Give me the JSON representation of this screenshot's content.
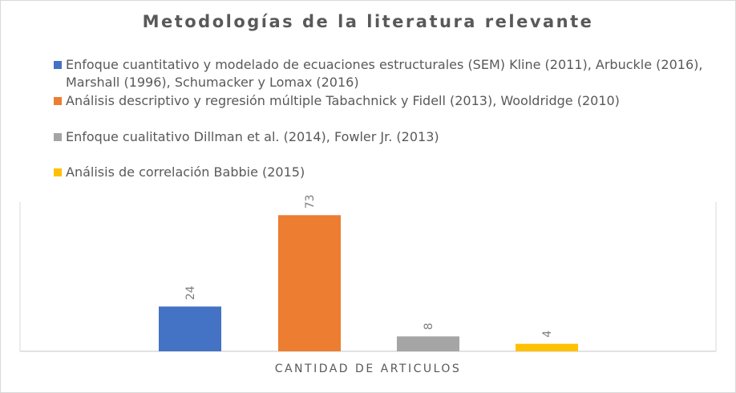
{
  "chart_data": {
    "type": "bar",
    "title": "Metodologías de la literatura relevante",
    "xlabel": "CANTIDAD DE ARTICULOS",
    "ylabel": "",
    "ylim": [
      0,
      80
    ],
    "grid": false,
    "legend_position": "top",
    "categories": [
      "CANTIDAD DE ARTICULOS"
    ],
    "series": [
      {
        "name": "Enfoque cuantitativo y modelado de ecuaciones estructurales (SEM) Kline (2011), Arbuckle (2016), Marshall (1996), Schumacker y Lomax (2016)",
        "values": [
          24
        ],
        "color": "#4472C4"
      },
      {
        "name": "Análisis descriptivo y regresión múltiple Tabachnick y Fidell (2013), Wooldridge (2010)",
        "values": [
          73
        ],
        "color": "#ED7D31"
      },
      {
        "name": "Enfoque cualitativo  Dillman et al. (2014), Fowler Jr. (2013)",
        "values": [
          8
        ],
        "color": "#A5A5A5"
      },
      {
        "name": "Análisis de correlación Babbie (2015)",
        "values": [
          4
        ],
        "color": "#FFC000"
      }
    ],
    "data_labels": [
      "24",
      "73",
      "8",
      "4"
    ]
  }
}
